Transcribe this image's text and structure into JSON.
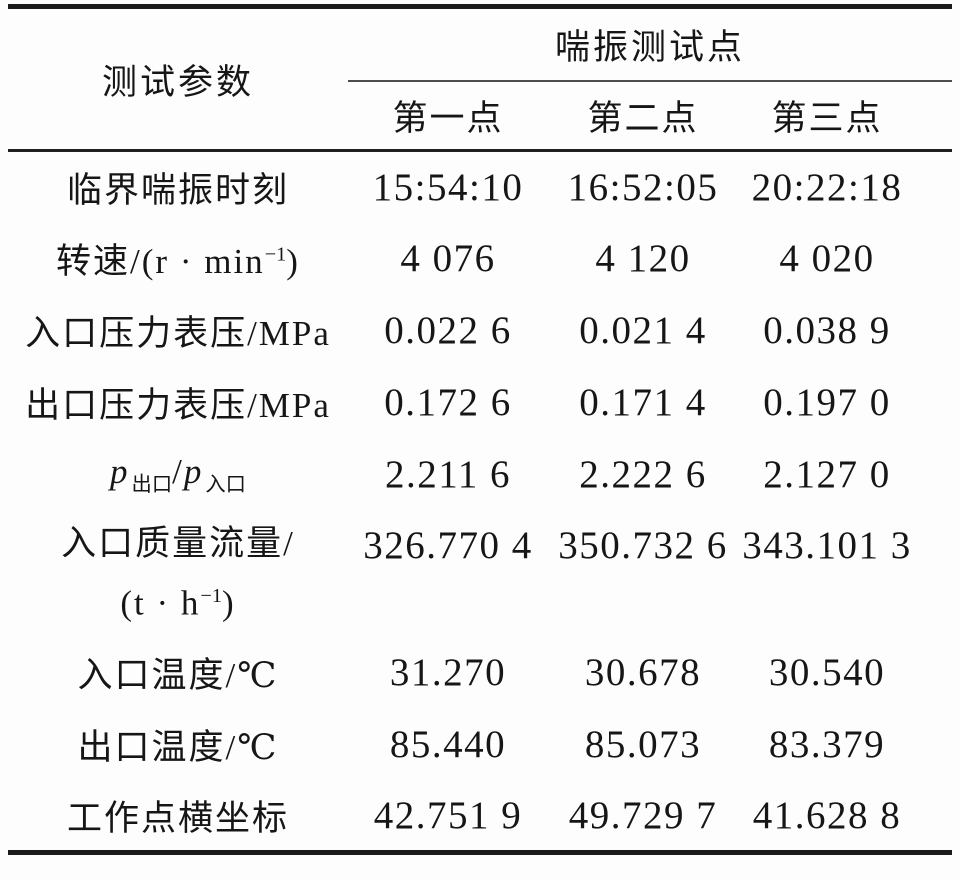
{
  "page": {
    "background": "#fdfdfd",
    "text_color": "#161616",
    "rule_color": "#1b1b1b"
  },
  "table": {
    "header": {
      "param_label": "测试参数",
      "group_label": "喘振测试点",
      "points": [
        "第一点",
        "第二点",
        "第三点"
      ]
    },
    "rows": [
      {
        "label": "临界喘振时刻",
        "values": [
          "15:54:10",
          "16:52:05",
          "20:22:18"
        ]
      },
      {
        "label_parts": {
          "pre": "转速/(r · min",
          "sup": "−1",
          "post": ")"
        },
        "values": [
          "4 076",
          "4 120",
          "4 020"
        ]
      },
      {
        "label": "入口压力表压/MPa",
        "values": [
          "0.022 6",
          "0.021 4",
          "0.038 9"
        ]
      },
      {
        "label": "出口压力表压/MPa",
        "values": [
          "0.172 6",
          "0.171 4",
          "0.197 0"
        ]
      },
      {
        "label_parts": {
          "p1": "p",
          "sub1": "出口",
          "slash": "/",
          "p2": "p",
          "sub2": "入口"
        },
        "values": [
          "2.211 6",
          "2.222 6",
          "2.127 0"
        ]
      },
      {
        "label_line1": "入口质量流量/",
        "label_line2": {
          "pre": "(t · h",
          "sup": "−1",
          "post": ")"
        },
        "values": [
          "326.770 4",
          "350.732 6",
          "343.101 3"
        ]
      },
      {
        "label": "入口温度/℃",
        "values": [
          "31.270",
          "30.678",
          "30.540"
        ]
      },
      {
        "label": "出口温度/℃",
        "values": [
          "85.440",
          "85.073",
          "83.379"
        ]
      },
      {
        "label": "工作点横坐标",
        "values": [
          "42.751 9",
          "49.729 7",
          "41.628 8"
        ]
      }
    ]
  }
}
